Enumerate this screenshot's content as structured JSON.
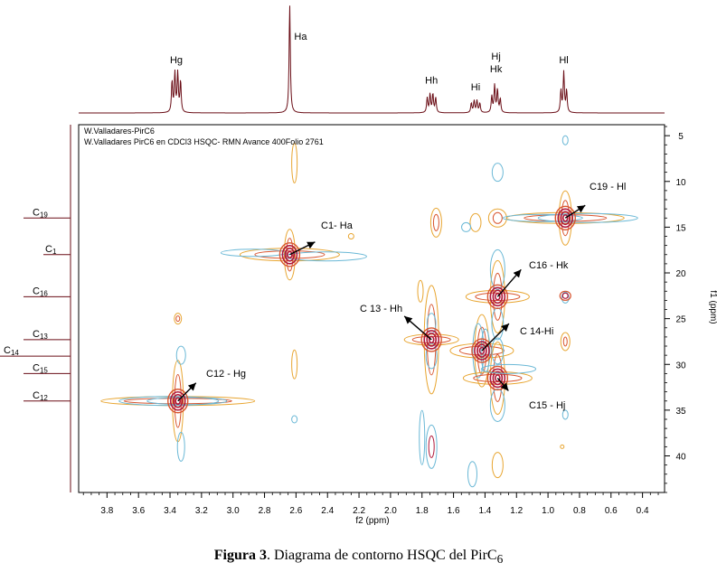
{
  "chart_data": {
    "type": "contour",
    "xlabel": "f2 (ppm)",
    "ylabel": "f1 (ppm)",
    "xlim": [
      3.98,
      0.26
    ],
    "ylim": [
      44,
      3.8
    ],
    "xticks": [
      3.8,
      3.6,
      3.4,
      3.2,
      3.0,
      2.8,
      2.6,
      2.4,
      2.2,
      2.0,
      1.8,
      1.6,
      1.4,
      1.2,
      1.0,
      0.8,
      0.6,
      0.4
    ],
    "xtick_labels": [
      "3.8",
      "3.6",
      "3.4",
      "3.2",
      "3.0",
      "2.8",
      "2.6",
      "2.4",
      "2.2",
      "2.0",
      "1.8",
      "1.6",
      "1.4",
      "1.2",
      "1.0",
      "0.8",
      "0.6",
      "0.4"
    ],
    "yticks": [
      5,
      10,
      15,
      20,
      25,
      30,
      35,
      40
    ],
    "ytick_labels": [
      "5",
      "10",
      "15",
      "20",
      "25",
      "30",
      "35",
      "40"
    ],
    "header_lines": [
      "W.Valladares-PirC6",
      "W.Valladares PirC6 en CDCl3 HSQC- RMN Avance 400Folio 2761"
    ],
    "peaks_1h": [
      {
        "label": "Hg",
        "ppm": 3.36,
        "height": 0.36,
        "split": "q"
      },
      {
        "label": "Ha",
        "ppm": 2.64,
        "height": 1.0,
        "split": "s"
      },
      {
        "label": "Hh",
        "ppm": 1.74,
        "height": 0.17,
        "split": "q"
      },
      {
        "label": "Hi",
        "ppm": 1.46,
        "height": 0.11,
        "split": "q"
      },
      {
        "label": "Hj",
        "ppm": 1.33,
        "height": 0.25,
        "split": "m"
      },
      {
        "label": "Hk",
        "ppm": 1.33,
        "height": 0.0,
        "split": "m"
      },
      {
        "label": "Hl",
        "ppm": 0.9,
        "height": 0.37,
        "split": "t"
      }
    ],
    "peaks_13c": [
      {
        "label": "C19",
        "sub": "19",
        "base": "C",
        "ppm": 14.0
      },
      {
        "label": "C1",
        "sub": "1",
        "base": "C",
        "ppm": 18.0
      },
      {
        "label": "C16",
        "sub": "16",
        "base": "C",
        "ppm": 22.6
      },
      {
        "label": "C13",
        "sub": "13",
        "base": "C",
        "ppm": 27.3
      },
      {
        "label": "C14",
        "sub": "14",
        "base": "C",
        "ppm": 29.1
      },
      {
        "label": "C15",
        "sub": "15",
        "base": "C",
        "ppm": 31.0
      },
      {
        "label": "C12",
        "sub": "12",
        "base": "C",
        "ppm": 34.0
      }
    ],
    "cross_peaks": [
      {
        "x": 3.35,
        "y": 34.0,
        "annotation": "C12 - Hg"
      },
      {
        "x": 2.64,
        "y": 18.0,
        "annotation": "C1- Ha"
      },
      {
        "x": 1.74,
        "y": 27.3,
        "annotation": "C 13 - Hh"
      },
      {
        "x": 1.42,
        "y": 28.5,
        "annotation": "C 14-Hi"
      },
      {
        "x": 1.32,
        "y": 22.6,
        "annotation": "C16 - Hk"
      },
      {
        "x": 1.32,
        "y": 31.5,
        "annotation": "C15 - Hj"
      },
      {
        "x": 0.89,
        "y": 14.0,
        "annotation": "C19 - Hl"
      }
    ],
    "contour_colors": [
      "#e8a530",
      "#d8552f",
      "#b0183a",
      "#6ab8d6"
    ]
  },
  "caption": {
    "bold": "Figura 3",
    "rest": ". Diagrama de contorno  HSQC del PirC",
    "sub": "6"
  }
}
